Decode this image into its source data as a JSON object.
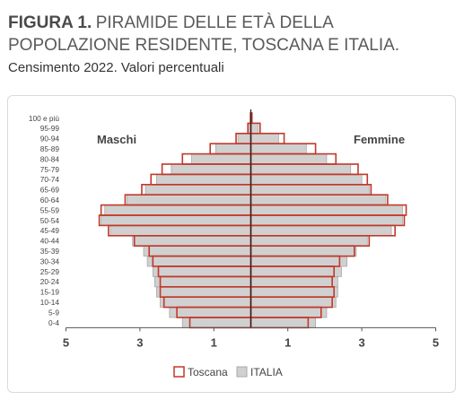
{
  "figure": {
    "label": "FIGURA 1.",
    "title": "PIRAMIDE DELLE ETÀ DELLA POPOLAZIONE RESIDENTE, TOSCANA E ITALIA.",
    "subtitle": "Censimento 2022. Valori percentuali"
  },
  "colors": {
    "toscana_border": "#c0392b",
    "italia_fill": "#d0d0d0",
    "italia_border": "#a8a8a8",
    "axis": "#555555"
  },
  "chart_data": {
    "type": "bar",
    "orientation": "horizontal",
    "pyramid": true,
    "categories": [
      "0-4",
      "5-9",
      "10-14",
      "15-19",
      "20-24",
      "25-29",
      "30-34",
      "35-39",
      "40-44",
      "45-49",
      "50-54",
      "55-59",
      "60-64",
      "65-69",
      "70-74",
      "75-79",
      "80-84",
      "85-89",
      "90-94",
      "95-99",
      "100 e più"
    ],
    "x_ticks": [
      "5",
      "3",
      "1",
      "1",
      "3",
      "5"
    ],
    "xlim": [
      -5,
      5
    ],
    "group_labels": {
      "left": "Maschi",
      "right": "Femmine"
    },
    "series": [
      {
        "name": "Toscana",
        "males": [
          1.65,
          2.0,
          2.35,
          2.45,
          2.45,
          2.5,
          2.65,
          2.75,
          3.15,
          3.85,
          4.1,
          4.05,
          3.4,
          2.95,
          2.7,
          2.4,
          1.85,
          1.1,
          0.4,
          0.08,
          0.01
        ],
        "females": [
          1.55,
          1.9,
          2.2,
          2.25,
          2.2,
          2.25,
          2.4,
          2.8,
          3.2,
          3.9,
          4.15,
          4.2,
          3.7,
          3.25,
          3.15,
          2.9,
          2.3,
          1.75,
          0.9,
          0.25,
          0.03
        ]
      },
      {
        "name": "ITALIA",
        "males": [
          1.85,
          2.2,
          2.45,
          2.55,
          2.6,
          2.65,
          2.8,
          2.9,
          3.2,
          3.8,
          4.05,
          3.95,
          3.35,
          2.85,
          2.55,
          2.15,
          1.6,
          0.95,
          0.35,
          0.07,
          0.01
        ],
        "females": [
          1.75,
          2.05,
          2.3,
          2.35,
          2.35,
          2.45,
          2.6,
          2.85,
          3.15,
          3.8,
          4.1,
          4.1,
          3.65,
          3.2,
          3.0,
          2.7,
          2.05,
          1.5,
          0.75,
          0.2,
          0.02
        ]
      }
    ],
    "legend_position": "bottom",
    "grid": false
  }
}
